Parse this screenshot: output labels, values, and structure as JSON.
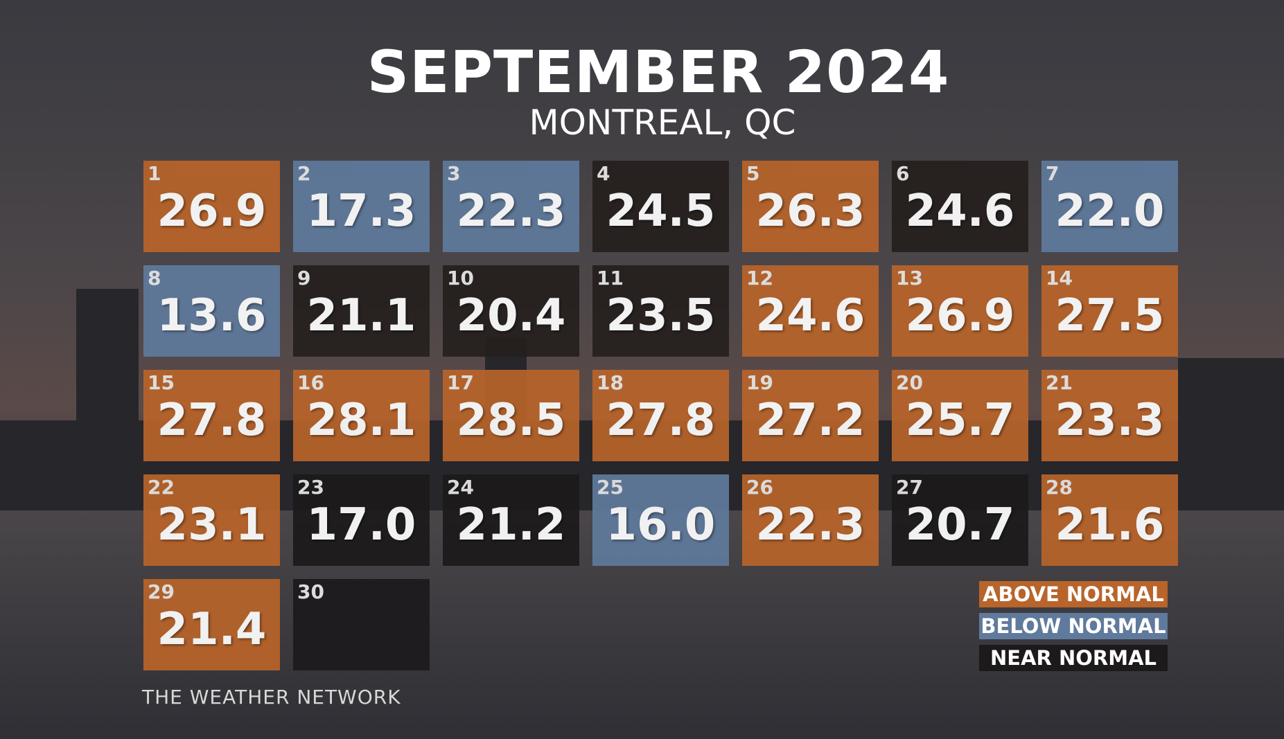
{
  "header": {
    "title": "SEPTEMBER 2024",
    "subtitle": "MONTREAL, QC"
  },
  "days": [
    {
      "day": 1,
      "value": 26.9,
      "color": "#b8642a"
    },
    {
      "day": 2,
      "value": 17.3,
      "color": "#5f7a9c"
    },
    {
      "day": 3,
      "value": 22.3,
      "color": "#5f7a9c"
    },
    {
      "day": 4,
      "value": 24.5,
      "color": "#25201e"
    },
    {
      "day": 5,
      "value": 26.3,
      "color": "#b8642a"
    },
    {
      "day": 6,
      "value": 24.6,
      "color": "#25201e"
    },
    {
      "day": 7,
      "value": 22.0,
      "value_label": "22.0",
      "color": "#5f7a9c"
    },
    {
      "day": 8,
      "value": 13.6,
      "color": "#5f7a9c"
    },
    {
      "day": 9,
      "value": 21.1,
      "color": "#25201e"
    },
    {
      "day": 10,
      "value": 20.4,
      "color": "#25201e"
    },
    {
      "day": 11,
      "value": 23.5,
      "color": "#25201e"
    },
    {
      "day": 12,
      "value": 24.6,
      "color": "#b8642a"
    },
    {
      "day": 13,
      "value": 26.9,
      "color": "#b8642a"
    },
    {
      "day": 14,
      "value": 27.5,
      "color": "#b8642a"
    },
    {
      "day": 15,
      "value": 27.8,
      "color": "#b8642a"
    },
    {
      "day": 16,
      "value": 28.1,
      "color": "#b8642a"
    },
    {
      "day": 17,
      "value": 28.5,
      "color": "#b8642a"
    },
    {
      "day": 18,
      "value": 27.8,
      "color": "#b8642a"
    },
    {
      "day": 19,
      "value": 27.2,
      "color": "#b8642a"
    },
    {
      "day": 20,
      "value": 25.7,
      "color": "#b8642a"
    },
    {
      "day": 21,
      "value": 23.3,
      "color": "#b8642a"
    },
    {
      "day": 22,
      "value": 23.1,
      "color": "#b8642a"
    },
    {
      "day": 23,
      "value": 17.0,
      "value_label": "17.0",
      "color": "#1c1a1a"
    },
    {
      "day": 24,
      "value": 21.2,
      "color": "#1c1a1a"
    },
    {
      "day": 25,
      "value": 16.0,
      "value_label": "16.0",
      "color": "#5f7a9c"
    },
    {
      "day": 26,
      "value": 22.3,
      "color": "#b8642a"
    },
    {
      "day": 27,
      "value": 20.7,
      "color": "#1c1a1a"
    },
    {
      "day": 28,
      "value": 21.6,
      "color": "#b8642a"
    },
    {
      "day": 29,
      "value": 21.4,
      "color": "#b8642a"
    },
    {
      "day": 30,
      "color": "#1c1a1c"
    }
  ],
  "legend": [
    {
      "label": "ABOVE NORMAL",
      "color": "#b8642a"
    },
    {
      "label": "BELOW NORMAL",
      "color": "#5f7a9c"
    },
    {
      "label": "NEAR NORMAL",
      "color": "#1c1a1a"
    }
  ],
  "footer": "THE WEATHER NETWORK"
}
